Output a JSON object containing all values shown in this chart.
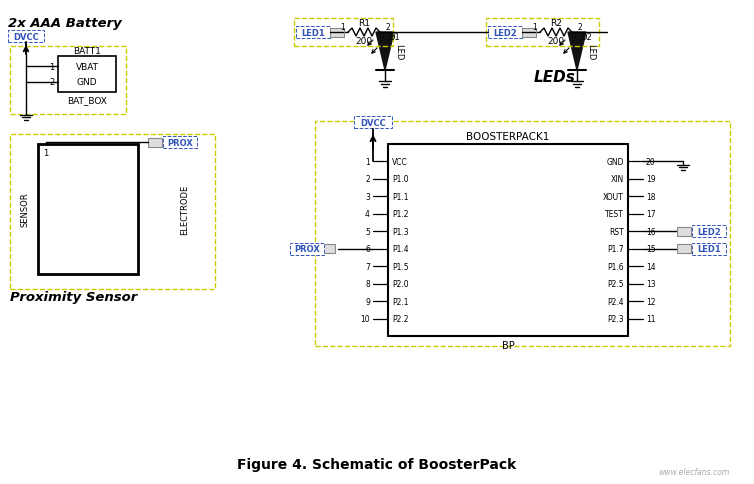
{
  "title": "Figure 4. Schematic of BoosterPack",
  "bg_color": "#ffffff",
  "watermark": "www.elecfans.com",
  "boosterpack": {
    "left_pins": [
      "VCC",
      "P1.0",
      "P1.1",
      "P1.2",
      "P1.3",
      "P1.4",
      "P1.5",
      "P2.0",
      "P2.1",
      "P2.2"
    ],
    "left_nums": [
      "1",
      "2",
      "3",
      "4",
      "5",
      "6",
      "7",
      "8",
      "9",
      "10"
    ],
    "right_pins": [
      "GND",
      "XIN",
      "XOUT",
      "TEST",
      "RST",
      "P1.7",
      "P1.6",
      "P2.5",
      "P2.4",
      "P2.3"
    ],
    "right_nums": [
      "20",
      "19",
      "18",
      "17",
      "16",
      "15",
      "14",
      "13",
      "12",
      "11"
    ]
  }
}
